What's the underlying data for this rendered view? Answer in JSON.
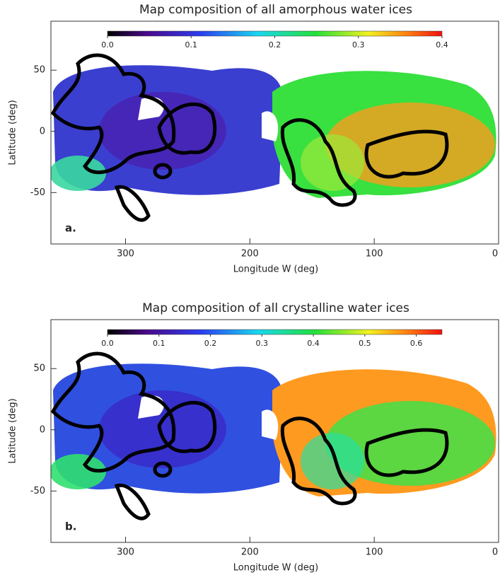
{
  "chart_data": [
    {
      "type": "map",
      "title": "Map composition of all amorphous water ices",
      "xlabel": "Longitude W (deg)",
      "ylabel": "Latitude (deg)",
      "panel_label": "a.",
      "xlim": [
        360,
        0
      ],
      "xticks": [
        300,
        200,
        100,
        0
      ],
      "ylim": [
        -92,
        90
      ],
      "yticks": [
        -50,
        0,
        50
      ],
      "colorbar": {
        "lim": [
          0,
          0.4
        ],
        "ticks": [
          {
            "value": 0,
            "label": "0.0"
          },
          0.1,
          0.2,
          0.3,
          0.4
        ]
      }
    },
    {
      "type": "map",
      "title": "Map composition of all crystalline water ices",
      "xlabel": "Longitude W (deg)",
      "ylabel": "Latitude (deg)",
      "panel_label": "b.",
      "xlim": [
        360,
        0
      ],
      "xticks": [
        300,
        200,
        100,
        0
      ],
      "ylim": [
        -92,
        90
      ],
      "yticks": [
        -50,
        0,
        50
      ],
      "colorbar": {
        "lim": [
          0,
          0.65
        ],
        "ticks": [
          {
            "value": 0,
            "label": "0.0"
          },
          0.1,
          0.2,
          0.3,
          0.4,
          0.5,
          0.6
        ]
      }
    }
  ]
}
